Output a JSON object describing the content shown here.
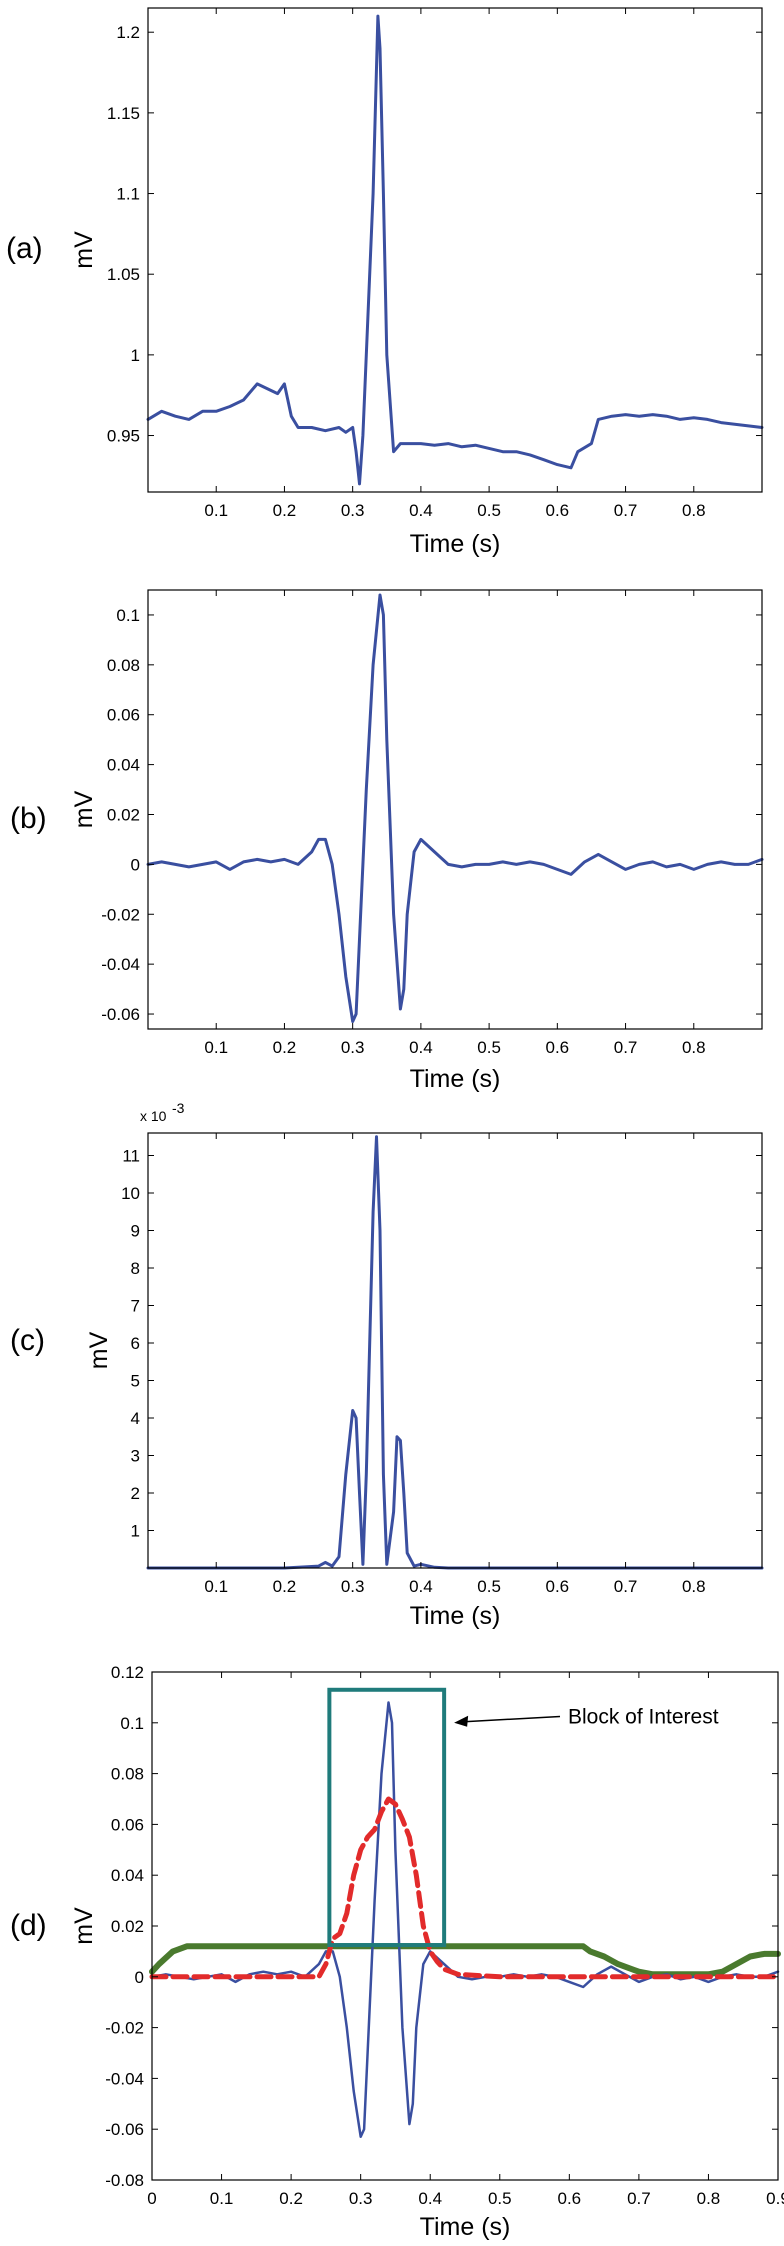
{
  "chart_data": [
    {
      "type": "line",
      "panel_label": "(a)",
      "xlabel": "Time (s)",
      "ylabel": "mV",
      "xlim": [
        0.0,
        0.9
      ],
      "ylim": [
        0.915,
        1.215
      ],
      "xticks": [
        0.1,
        0.2,
        0.3,
        0.4,
        0.5,
        0.6,
        0.7,
        0.8
      ],
      "yticks": [
        0.95,
        1,
        1.05,
        1.1,
        1.15,
        1.2
      ],
      "ytick_labels": [
        "0.95",
        "1",
        "1.05",
        "1.1",
        "1.15",
        "1.2"
      ],
      "exponent_label": "",
      "colors": {
        "series": "#3a4fa0"
      },
      "series": [
        {
          "stroke_width": 3,
          "dash": "",
          "x": [
            0,
            0.02,
            0.04,
            0.06,
            0.08,
            0.1,
            0.12,
            0.14,
            0.16,
            0.17,
            0.18,
            0.19,
            0.2,
            0.21,
            0.22,
            0.24,
            0.26,
            0.28,
            0.29,
            0.3,
            0.305,
            0.31,
            0.315,
            0.32,
            0.33,
            0.337,
            0.34,
            0.345,
            0.35,
            0.36,
            0.37,
            0.38,
            0.4,
            0.42,
            0.44,
            0.46,
            0.48,
            0.5,
            0.52,
            0.54,
            0.56,
            0.58,
            0.6,
            0.62,
            0.63,
            0.65,
            0.66,
            0.68,
            0.7,
            0.72,
            0.74,
            0.76,
            0.78,
            0.8,
            0.82,
            0.84,
            0.86,
            0.88,
            0.9
          ],
          "y": [
            0.96,
            0.965,
            0.962,
            0.96,
            0.965,
            0.965,
            0.968,
            0.972,
            0.982,
            0.98,
            0.978,
            0.976,
            0.982,
            0.962,
            0.955,
            0.955,
            0.953,
            0.955,
            0.952,
            0.955,
            0.94,
            0.92,
            0.95,
            1.0,
            1.1,
            1.21,
            1.19,
            1.1,
            1.0,
            0.94,
            0.945,
            0.945,
            0.945,
            0.944,
            0.945,
            0.943,
            0.944,
            0.942,
            0.94,
            0.94,
            0.938,
            0.935,
            0.932,
            0.93,
            0.94,
            0.945,
            0.96,
            0.962,
            0.963,
            0.962,
            0.963,
            0.962,
            0.96,
            0.961,
            0.96,
            0.958,
            0.957,
            0.956,
            0.955
          ]
        }
      ]
    },
    {
      "type": "line",
      "panel_label": "(b)",
      "xlabel": "Time (s)",
      "ylabel": "mV",
      "xlim": [
        0.0,
        0.9
      ],
      "ylim": [
        -0.066,
        0.11
      ],
      "xticks": [
        0.1,
        0.2,
        0.3,
        0.4,
        0.5,
        0.6,
        0.7,
        0.8
      ],
      "yticks": [
        -0.06,
        -0.04,
        -0.02,
        0,
        0.02,
        0.04,
        0.06,
        0.08,
        0.1
      ],
      "ytick_labels": [
        "-0.06",
        "-0.04",
        "-0.02",
        "0",
        "0.02",
        "0.04",
        "0.06",
        "0.08",
        "0.1"
      ],
      "exponent_label": "",
      "colors": {
        "series": "#3a4fa0"
      },
      "series": [
        {
          "stroke_width": 3,
          "dash": "",
          "x": [
            0,
            0.02,
            0.04,
            0.06,
            0.08,
            0.1,
            0.12,
            0.14,
            0.16,
            0.18,
            0.2,
            0.22,
            0.24,
            0.25,
            0.26,
            0.27,
            0.28,
            0.29,
            0.3,
            0.305,
            0.31,
            0.32,
            0.33,
            0.34,
            0.345,
            0.35,
            0.36,
            0.37,
            0.375,
            0.38,
            0.39,
            0.4,
            0.42,
            0.44,
            0.46,
            0.48,
            0.5,
            0.52,
            0.54,
            0.56,
            0.58,
            0.6,
            0.62,
            0.64,
            0.66,
            0.68,
            0.7,
            0.72,
            0.74,
            0.76,
            0.78,
            0.8,
            0.82,
            0.84,
            0.86,
            0.88,
            0.9
          ],
          "y": [
            0.0,
            0.001,
            0.0,
            -0.001,
            0.0,
            0.001,
            -0.002,
            0.001,
            0.002,
            0.001,
            0.002,
            0.0,
            0.005,
            0.01,
            0.01,
            0.0,
            -0.02,
            -0.045,
            -0.063,
            -0.06,
            -0.03,
            0.03,
            0.08,
            0.108,
            0.1,
            0.05,
            -0.02,
            -0.058,
            -0.05,
            -0.02,
            0.005,
            0.01,
            0.005,
            0.0,
            -0.001,
            0.0,
            0.0,
            0.001,
            0.0,
            0.001,
            0.0,
            -0.002,
            -0.004,
            0.001,
            0.004,
            0.001,
            -0.002,
            0.0,
            0.001,
            -0.001,
            0.0,
            -0.002,
            0.0,
            0.001,
            0.0,
            0.0,
            0.002
          ]
        }
      ]
    },
    {
      "type": "line",
      "panel_label": "(c)",
      "xlabel": "Time (s)",
      "ylabel": "mV",
      "xlim": [
        0.0,
        0.9
      ],
      "ylim": [
        0,
        11.6
      ],
      "xticks": [
        0.1,
        0.2,
        0.3,
        0.4,
        0.5,
        0.6,
        0.7,
        0.8
      ],
      "yticks": [
        1,
        2,
        3,
        4,
        5,
        6,
        7,
        8,
        9,
        10,
        11
      ],
      "ytick_labels": [
        "1",
        "2",
        "3",
        "4",
        "5",
        "6",
        "7",
        "8",
        "9",
        "10",
        "11"
      ],
      "exponent_label": "x 10",
      "exponent_sup": "-3",
      "colors": {
        "series": "#3a4fa0"
      },
      "series": [
        {
          "stroke_width": 3,
          "dash": "",
          "x": [
            0,
            0.1,
            0.2,
            0.25,
            0.26,
            0.27,
            0.28,
            0.29,
            0.3,
            0.305,
            0.31,
            0.315,
            0.32,
            0.33,
            0.335,
            0.34,
            0.345,
            0.35,
            0.36,
            0.365,
            0.37,
            0.375,
            0.38,
            0.39,
            0.4,
            0.42,
            0.44,
            0.5,
            0.6,
            0.7,
            0.8,
            0.9
          ],
          "y": [
            0,
            0,
            0,
            0.05,
            0.15,
            0.05,
            0.3,
            2.5,
            4.2,
            4.0,
            2.0,
            0.1,
            2.5,
            9.5,
            11.5,
            9.0,
            2.5,
            0.1,
            1.5,
            3.5,
            3.4,
            2.0,
            0.4,
            0.05,
            0.1,
            0.02,
            0,
            0,
            0,
            0,
            0,
            0
          ]
        }
      ]
    },
    {
      "type": "line",
      "panel_label": "(d)",
      "xlabel": "Time (s)",
      "ylabel": "mV",
      "xlim": [
        0.0,
        0.9
      ],
      "ylim": [
        -0.08,
        0.12
      ],
      "xticks": [
        0,
        0.1,
        0.2,
        0.3,
        0.4,
        0.5,
        0.6,
        0.7,
        0.8,
        0.9
      ],
      "xtick_labels": [
        "0",
        "0.1",
        "0.2",
        "0.3",
        "0.4",
        "0.5",
        "0.6",
        "0.7",
        "0.8",
        "0.9"
      ],
      "yticks": [
        -0.08,
        -0.06,
        -0.04,
        -0.02,
        0,
        0.02,
        0.04,
        0.06,
        0.08,
        0.1,
        0.12
      ],
      "ytick_labels": [
        "-0.08",
        "-0.06",
        "-0.04",
        "-0.02",
        "0",
        "0.02",
        "0.04",
        "0.06",
        "0.08",
        "0.1",
        "0.12"
      ],
      "exponent_label": "",
      "colors": {
        "signal": "#3a4fa0",
        "envelope": "#e22b2b",
        "threshold": "#4a7a2e",
        "block": "#1f7b7b"
      },
      "series": [
        {
          "stroke_width": 2.5,
          "dash": "",
          "color_key": "signal",
          "x": [
            0,
            0.02,
            0.04,
            0.06,
            0.08,
            0.1,
            0.12,
            0.14,
            0.16,
            0.18,
            0.2,
            0.22,
            0.24,
            0.25,
            0.26,
            0.27,
            0.28,
            0.29,
            0.3,
            0.305,
            0.31,
            0.32,
            0.33,
            0.34,
            0.345,
            0.35,
            0.36,
            0.37,
            0.375,
            0.38,
            0.39,
            0.4,
            0.42,
            0.44,
            0.46,
            0.48,
            0.5,
            0.52,
            0.54,
            0.56,
            0.58,
            0.6,
            0.62,
            0.64,
            0.66,
            0.68,
            0.7,
            0.72,
            0.74,
            0.76,
            0.78,
            0.8,
            0.82,
            0.84,
            0.86,
            0.88,
            0.9
          ],
          "y": [
            0.0,
            0.001,
            0.0,
            -0.001,
            0.0,
            0.001,
            -0.002,
            0.001,
            0.002,
            0.001,
            0.002,
            0.0,
            0.005,
            0.01,
            0.01,
            0.0,
            -0.02,
            -0.045,
            -0.063,
            -0.06,
            -0.03,
            0.03,
            0.08,
            0.108,
            0.1,
            0.05,
            -0.02,
            -0.058,
            -0.05,
            -0.02,
            0.005,
            0.01,
            0.005,
            0.0,
            -0.001,
            0.0,
            0.0,
            0.001,
            0.0,
            0.001,
            0.0,
            -0.002,
            -0.004,
            0.001,
            0.004,
            0.001,
            -0.002,
            0.0,
            0.001,
            -0.001,
            0.0,
            -0.002,
            0.0,
            0.001,
            0.0,
            0.0,
            0.002
          ]
        },
        {
          "stroke_width": 5,
          "dash": "14,7",
          "color_key": "envelope",
          "x": [
            0,
            0.1,
            0.2,
            0.24,
            0.25,
            0.26,
            0.27,
            0.28,
            0.29,
            0.3,
            0.31,
            0.32,
            0.33,
            0.34,
            0.35,
            0.36,
            0.37,
            0.38,
            0.39,
            0.4,
            0.41,
            0.42,
            0.44,
            0.5,
            0.6,
            0.7,
            0.8,
            0.9
          ],
          "y": [
            0,
            0,
            0,
            0,
            0.005,
            0.015,
            0.017,
            0.025,
            0.04,
            0.05,
            0.055,
            0.058,
            0.065,
            0.07,
            0.068,
            0.062,
            0.055,
            0.04,
            0.02,
            0.01,
            0.006,
            0.003,
            0.001,
            0,
            0,
            0,
            0,
            0
          ]
        },
        {
          "stroke_width": 6,
          "dash": "",
          "color_key": "threshold",
          "x": [
            0,
            0.01,
            0.03,
            0.05,
            0.1,
            0.2,
            0.3,
            0.4,
            0.5,
            0.55,
            0.6,
            0.62,
            0.63,
            0.65,
            0.67,
            0.7,
            0.72,
            0.8,
            0.82,
            0.84,
            0.86,
            0.88,
            0.9
          ],
          "y": [
            0.002,
            0.005,
            0.01,
            0.012,
            0.012,
            0.012,
            0.012,
            0.012,
            0.012,
            0.012,
            0.012,
            0.012,
            0.01,
            0.008,
            0.005,
            0.002,
            0.001,
            0.001,
            0.002,
            0.005,
            0.008,
            0.009,
            0.009
          ]
        }
      ],
      "block_of_interest": {
        "x0": 0.255,
        "x1": 0.42,
        "y0": 0.0125,
        "y1": 0.113
      },
      "annotation": {
        "text": "Block of Interest"
      }
    }
  ]
}
